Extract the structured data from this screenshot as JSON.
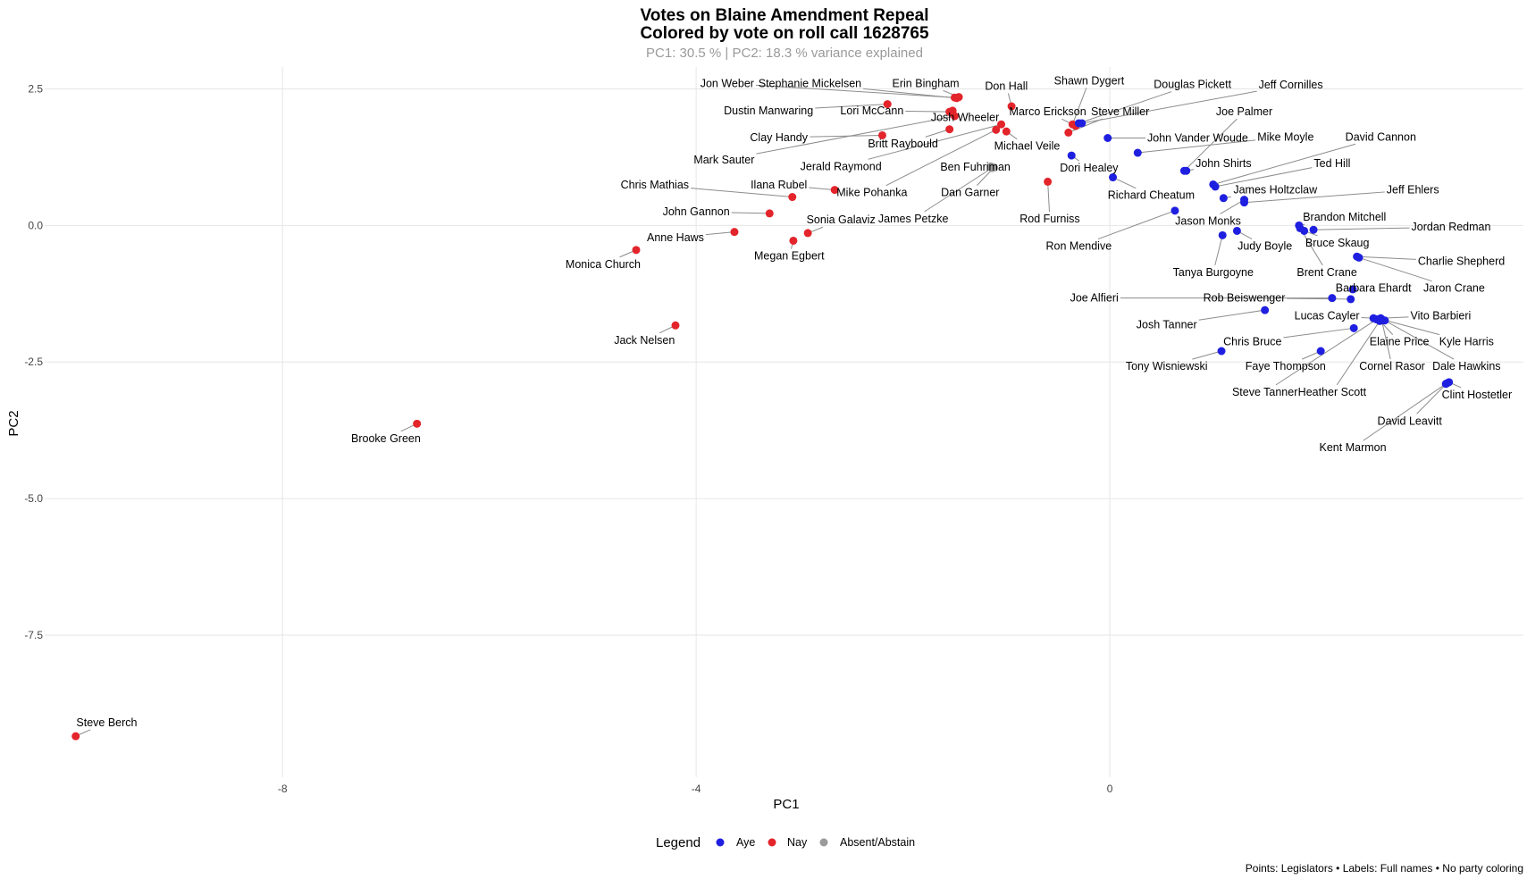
{
  "chart_data": {
    "type": "scatter",
    "title": "Votes on Blaine Amendment Repeal",
    "title_line2": "Colored by vote on roll call 1628765",
    "subtitle": "PC1: 30.5 % | PC2: 18.3 % variance explained",
    "xlabel": "PC1",
    "ylabel": "PC2",
    "xlim": [
      -10.3,
      4.0
    ],
    "ylim": [
      -10.1,
      2.9
    ],
    "x_ticks": [
      -8,
      -4,
      0
    ],
    "x_tick_labels": [
      "-8",
      "-4",
      "0"
    ],
    "y_ticks": [
      2.5,
      0,
      -2.5,
      -5,
      -7.5
    ],
    "y_tick_labels": [
      "2.5",
      "0.0",
      "-2.5",
      "-5.0",
      "-7.5"
    ],
    "grid": true,
    "legend": {
      "title": "Legend",
      "position": "bottom",
      "items": [
        {
          "key": "Aye",
          "label": "Aye",
          "color": "#1f1fe0"
        },
        {
          "key": "Nay",
          "label": "Nay",
          "color": "#e3242b"
        },
        {
          "key": "Absent",
          "label": "Absent/Abstain",
          "color": "#9a9a9a"
        }
      ]
    },
    "caption": "Points: Legislators • Labels: Full names • No party coloring",
    "points": [
      {
        "name": "Jon Weber",
        "x": -1.5,
        "y": 2.34,
        "vote": "Nay",
        "lx": -3.7,
        "ly": 2.6
      },
      {
        "name": "Stephanie Mickelsen",
        "x": -1.48,
        "y": 2.33,
        "vote": "Nay",
        "lx": -2.9,
        "ly": 2.6
      },
      {
        "name": "Erin Bingham",
        "x": -1.46,
        "y": 2.35,
        "vote": "Nay",
        "lx": -1.78,
        "ly": 2.6
      },
      {
        "name": "Dustin Manwaring",
        "x": -2.15,
        "y": 2.22,
        "vote": "Nay",
        "lx": -3.3,
        "ly": 2.1
      },
      {
        "name": "Lori McCann",
        "x": -1.55,
        "y": 2.08,
        "vote": "Nay",
        "lx": -2.3,
        "ly": 2.1
      },
      {
        "name": "Josh Wheeler",
        "x": -1.52,
        "y": 2.1,
        "vote": "Nay",
        "lx": -1.4,
        "ly": 1.98
      },
      {
        "name": "Clay Handy",
        "x": -2.2,
        "y": 1.65,
        "vote": "Nay",
        "lx": -3.2,
        "ly": 1.61
      },
      {
        "name": "Britt Raybould",
        "x": -1.55,
        "y": 1.76,
        "vote": "Nay",
        "lx": -2.0,
        "ly": 1.49
      },
      {
        "name": "Mark Sauter",
        "x": -1.5,
        "y": 2.0,
        "vote": "Nay",
        "lx": -3.73,
        "ly": 1.2
      },
      {
        "name": "Jerald Raymond",
        "x": -1.05,
        "y": 1.85,
        "vote": "Nay",
        "lx": -2.6,
        "ly": 1.08
      },
      {
        "name": "Michael Veile",
        "x": -1.0,
        "y": 1.72,
        "vote": "Nay",
        "lx": -0.8,
        "ly": 1.45
      },
      {
        "name": "Ben Fuhriman",
        "x": -1.15,
        "y": 1.08,
        "vote": "Absent",
        "lx": -1.3,
        "ly": 1.07
      },
      {
        "name": "Mike Pohanka",
        "x": -1.1,
        "y": 1.75,
        "vote": "Nay",
        "lx": -2.3,
        "ly": 0.6
      },
      {
        "name": "Don Hall",
        "x": -0.95,
        "y": 2.18,
        "vote": "Nay",
        "lx": -1.0,
        "ly": 2.55
      },
      {
        "name": "Shawn Dygert",
        "x": -0.36,
        "y": 1.85,
        "vote": "Nay",
        "lx": -0.2,
        "ly": 2.65
      },
      {
        "name": "Marco Erickson",
        "x": -0.33,
        "y": 1.82,
        "vote": "Nay",
        "lx": -0.6,
        "ly": 2.08
      },
      {
        "name": "Douglas Pickett",
        "x": -0.3,
        "y": 1.87,
        "vote": "Aye",
        "lx": 0.8,
        "ly": 2.58
      },
      {
        "name": "Jeff Cornilles",
        "x": -0.27,
        "y": 1.87,
        "vote": "Aye",
        "lx": 1.75,
        "ly": 2.57
      },
      {
        "name": "Steve Miller",
        "x": -0.4,
        "y": 1.7,
        "vote": "Nay",
        "lx": 0.1,
        "ly": 2.08
      },
      {
        "name": "Dan Garner",
        "x": -1.12,
        "y": 1.06,
        "vote": "Absent",
        "lx": -1.35,
        "ly": 0.6
      },
      {
        "name": "James Petzke",
        "x": -1.14,
        "y": 1.05,
        "vote": "Absent",
        "lx": -1.9,
        "ly": 0.12
      },
      {
        "name": "Rod Furniss",
        "x": -0.6,
        "y": 0.8,
        "vote": "Nay",
        "lx": -0.58,
        "ly": 0.12
      },
      {
        "name": "Dori Healey",
        "x": -0.37,
        "y": 1.28,
        "vote": "Aye",
        "lx": -0.2,
        "ly": 1.05
      },
      {
        "name": "John Vander Woude",
        "x": -0.02,
        "y": 1.6,
        "vote": "Aye",
        "lx": 0.85,
        "ly": 1.6
      },
      {
        "name": "Joe Palmer",
        "x": 0.72,
        "y": 1.0,
        "vote": "Aye",
        "lx": 1.3,
        "ly": 2.08
      },
      {
        "name": "Mike Moyle",
        "x": 0.27,
        "y": 1.33,
        "vote": "Aye",
        "lx": 1.7,
        "ly": 1.62
      },
      {
        "name": "David Cannon",
        "x": 1.0,
        "y": 0.75,
        "vote": "Aye",
        "lx": 2.62,
        "ly": 1.62
      },
      {
        "name": "John Shirts",
        "x": 0.74,
        "y": 1.0,
        "vote": "Aye",
        "lx": 1.1,
        "ly": 1.13
      },
      {
        "name": "Ted Hill",
        "x": 1.02,
        "y": 0.71,
        "vote": "Aye",
        "lx": 2.15,
        "ly": 1.13
      },
      {
        "name": "Richard Cheatum",
        "x": 0.03,
        "y": 0.88,
        "vote": "Aye",
        "lx": 0.4,
        "ly": 0.55
      },
      {
        "name": "James Holtzclaw",
        "x": 1.1,
        "y": 0.5,
        "vote": "Aye",
        "lx": 1.6,
        "ly": 0.65
      },
      {
        "name": "Jeff Ehlers",
        "x": 1.3,
        "y": 0.42,
        "vote": "Aye",
        "lx": 2.93,
        "ly": 0.65
      },
      {
        "name": "Jason Monks",
        "x": 1.3,
        "y": 0.47,
        "vote": "Aye",
        "lx": 0.95,
        "ly": 0.08
      },
      {
        "name": "Ron Mendive",
        "x": 0.63,
        "y": 0.27,
        "vote": "Aye",
        "lx": -0.3,
        "ly": -0.38
      },
      {
        "name": "Judy Boyle",
        "x": 1.23,
        "y": -0.1,
        "vote": "Aye",
        "lx": 1.5,
        "ly": -0.38
      },
      {
        "name": "Tanya Burgoyne",
        "x": 1.09,
        "y": -0.18,
        "vote": "Aye",
        "lx": 1.0,
        "ly": -0.86
      },
      {
        "name": "Brandon Mitchell",
        "x": 1.83,
        "y": 0.0,
        "vote": "Aye",
        "lx": 2.27,
        "ly": 0.15
      },
      {
        "name": "Jordan Redman",
        "x": 1.97,
        "y": -0.08,
        "vote": "Aye",
        "lx": 3.3,
        "ly": -0.03
      },
      {
        "name": "Bruce Skaug",
        "x": 1.88,
        "y": -0.1,
        "vote": "Aye",
        "lx": 2.2,
        "ly": -0.32
      },
      {
        "name": "Brent Crane",
        "x": 1.84,
        "y": -0.05,
        "vote": "Aye",
        "lx": 2.1,
        "ly": -0.86
      },
      {
        "name": "Charlie Shepherd",
        "x": 2.39,
        "y": -0.57,
        "vote": "Aye",
        "lx": 3.4,
        "ly": -0.66
      },
      {
        "name": "Jaron Crane",
        "x": 2.41,
        "y": -0.59,
        "vote": "Aye",
        "lx": 3.33,
        "ly": -1.15
      },
      {
        "name": "Barbara Ehardt",
        "x": 2.35,
        "y": -1.17,
        "vote": "Aye",
        "lx": 2.55,
        "ly": -1.15
      },
      {
        "name": "Joe Alfieri",
        "x": 2.15,
        "y": -1.33,
        "vote": "Aye",
        "lx": -0.15,
        "ly": -1.33
      },
      {
        "name": "Rob Beiswenger",
        "x": 2.33,
        "y": -1.35,
        "vote": "Aye",
        "lx": 1.3,
        "ly": -1.33
      },
      {
        "name": "Josh Tanner",
        "x": 1.5,
        "y": -1.55,
        "vote": "Aye",
        "lx": 0.55,
        "ly": -1.82
      },
      {
        "name": "Lucas Cayler",
        "x": 2.55,
        "y": -1.7,
        "vote": "Aye",
        "lx": 2.1,
        "ly": -1.65
      },
      {
        "name": "Vito Barbieri",
        "x": 2.62,
        "y": -1.7,
        "vote": "Aye",
        "lx": 3.2,
        "ly": -1.65
      },
      {
        "name": "Chris Bruce",
        "x": 2.36,
        "y": -1.88,
        "vote": "Aye",
        "lx": 1.38,
        "ly": -2.13
      },
      {
        "name": "Elaine Price",
        "x": 2.6,
        "y": -1.72,
        "vote": "Aye",
        "lx": 2.8,
        "ly": -2.13
      },
      {
        "name": "Kyle Harris",
        "x": 2.63,
        "y": -1.72,
        "vote": "Aye",
        "lx": 3.45,
        "ly": -2.13
      },
      {
        "name": "Tony Wisniewski",
        "x": 1.08,
        "y": -2.3,
        "vote": "Aye",
        "lx": 0.55,
        "ly": -2.58
      },
      {
        "name": "Faye Thompson",
        "x": 2.04,
        "y": -2.3,
        "vote": "Aye",
        "lx": 1.7,
        "ly": -2.58
      },
      {
        "name": "Cornel Rasor",
        "x": 2.63,
        "y": -1.74,
        "vote": "Aye",
        "lx": 2.73,
        "ly": -2.58
      },
      {
        "name": "Dale Hawkins",
        "x": 2.66,
        "y": -1.74,
        "vote": "Aye",
        "lx": 3.45,
        "ly": -2.58
      },
      {
        "name": "Steve Tanner",
        "x": 2.58,
        "y": -1.72,
        "vote": "Aye",
        "lx": 1.5,
        "ly": -3.05
      },
      {
        "name": "Heather Scott",
        "x": 2.61,
        "y": -1.75,
        "vote": "Aye",
        "lx": 2.15,
        "ly": -3.05
      },
      {
        "name": "Clint Hostetler",
        "x": 3.28,
        "y": -2.87,
        "vote": "Aye",
        "lx": 3.55,
        "ly": -3.1
      },
      {
        "name": "David Leavitt",
        "x": 3.26,
        "y": -2.89,
        "vote": "Aye",
        "lx": 2.9,
        "ly": -3.58
      },
      {
        "name": "Kent Marmon",
        "x": 3.25,
        "y": -2.9,
        "vote": "Aye",
        "lx": 2.35,
        "ly": -4.07
      },
      {
        "name": "Chris Mathias",
        "x": -3.07,
        "y": 0.52,
        "vote": "Nay",
        "lx": -4.4,
        "ly": 0.74
      },
      {
        "name": "Ilana Rubel",
        "x": -2.66,
        "y": 0.65,
        "vote": "Nay",
        "lx": -3.2,
        "ly": 0.74
      },
      {
        "name": "John Gannon",
        "x": -3.29,
        "y": 0.22,
        "vote": "Nay",
        "lx": -4.0,
        "ly": 0.25
      },
      {
        "name": "Sonia Galaviz",
        "x": -2.92,
        "y": -0.14,
        "vote": "Nay",
        "lx": -2.6,
        "ly": 0.1
      },
      {
        "name": "Anne Haws",
        "x": -3.63,
        "y": -0.12,
        "vote": "Nay",
        "lx": -4.2,
        "ly": -0.22
      },
      {
        "name": "Megan Egbert",
        "x": -3.06,
        "y": -0.28,
        "vote": "Nay",
        "lx": -3.1,
        "ly": -0.56
      },
      {
        "name": "Monica Church",
        "x": -4.58,
        "y": -0.45,
        "vote": "Nay",
        "lx": -4.9,
        "ly": -0.71
      },
      {
        "name": "Jack Nelsen",
        "x": -4.2,
        "y": -1.83,
        "vote": "Nay",
        "lx": -4.5,
        "ly": -2.1
      },
      {
        "name": "Brooke Green",
        "x": -6.7,
        "y": -3.63,
        "vote": "Nay",
        "lx": -7.0,
        "ly": -3.9
      },
      {
        "name": "Steve Berch",
        "x": -10.0,
        "y": -9.35,
        "vote": "Nay",
        "lx": -9.7,
        "ly": -9.1
      }
    ]
  }
}
